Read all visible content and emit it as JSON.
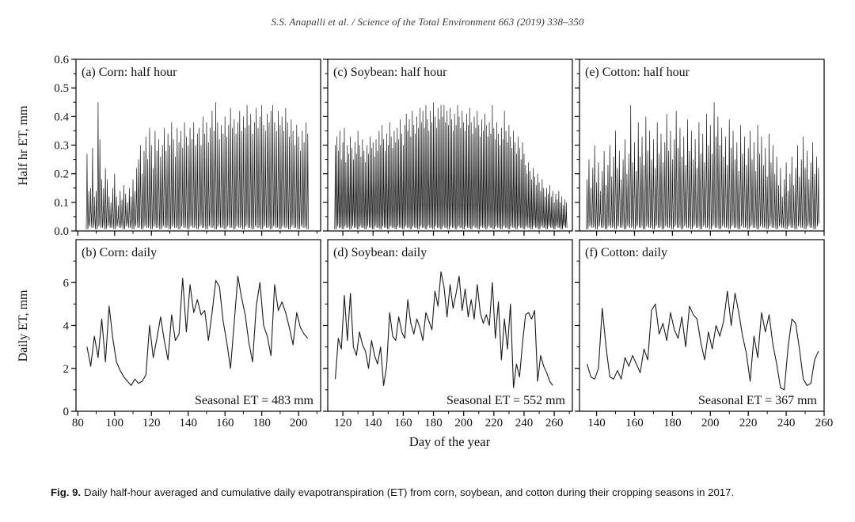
{
  "header": {
    "citation": "S.S. Anapalli et al. / Science of the Total Environment 663 (2019) 338–350"
  },
  "caption": {
    "label": "Fig. 9.",
    "text": "Daily half-hour averaged and cumulative daily evapotranspiration (ET) from corn, soybean, and cotton during their cropping seasons in 2017."
  },
  "axes": {
    "x_title": "Day of the year",
    "y_title_top": "Half hr ET, mm",
    "y_title_bottom": "Daily ET, mm"
  },
  "colors": {
    "line": "#1a1a1a",
    "frame": "#000000"
  },
  "chart_data": [
    {
      "panel": "a",
      "type": "line",
      "title": "(a) Corn: half hour",
      "crop": "Corn",
      "ylabel": "Half hr ET, mm",
      "ylim": [
        0,
        0.6
      ],
      "ytick_values": [
        0,
        0.1,
        0.2,
        0.3,
        0.4,
        0.5,
        0.6
      ],
      "ytick_labels": [
        "0.0",
        "0.1",
        "0.2",
        "0.3",
        "0.4",
        "0.5",
        "0.6"
      ],
      "xlim": [
        79,
        212
      ],
      "xticks": [
        80,
        100,
        120,
        140,
        160,
        180,
        200
      ],
      "series": {
        "name": "half-hour ET daily peaks",
        "x_start": 85,
        "x_step": 1,
        "peaks": [
          0.27,
          0.14,
          0.15,
          0.29,
          0.12,
          0.14,
          0.45,
          0.32,
          0.18,
          0.15,
          0.22,
          0.18,
          0.12,
          0.1,
          0.15,
          0.2,
          0.12,
          0.09,
          0.14,
          0.11,
          0.16,
          0.13,
          0.1,
          0.15,
          0.12,
          0.18,
          0.14,
          0.22,
          0.25,
          0.3,
          0.2,
          0.28,
          0.33,
          0.25,
          0.36,
          0.3,
          0.22,
          0.35,
          0.28,
          0.32,
          0.26,
          0.3,
          0.36,
          0.28,
          0.34,
          0.3,
          0.38,
          0.32,
          0.26,
          0.36,
          0.31,
          0.35,
          0.29,
          0.38,
          0.33,
          0.3,
          0.36,
          0.32,
          0.38,
          0.3,
          0.34,
          0.36,
          0.3,
          0.4,
          0.34,
          0.38,
          0.31,
          0.36,
          0.42,
          0.35,
          0.45,
          0.38,
          0.32,
          0.37,
          0.34,
          0.4,
          0.33,
          0.37,
          0.43,
          0.36,
          0.39,
          0.34,
          0.38,
          0.42,
          0.35,
          0.4,
          0.36,
          0.44,
          0.37,
          0.41,
          0.34,
          0.38,
          0.43,
          0.36,
          0.4,
          0.44,
          0.37,
          0.35,
          0.41,
          0.38,
          0.42,
          0.44,
          0.38,
          0.35,
          0.42,
          0.37,
          0.4,
          0.35,
          0.43,
          0.38,
          0.33,
          0.39,
          0.35,
          0.3,
          0.37,
          0.33,
          0.28,
          0.35,
          0.31,
          0.38,
          0.34
        ]
      }
    },
    {
      "panel": "b",
      "type": "line",
      "title": "(b) Corn: daily",
      "crop": "Corn",
      "ylabel": "Daily ET, mm",
      "ylim": [
        0,
        8
      ],
      "ytick_values": [
        0,
        2,
        4,
        6
      ],
      "ytick_labels": [
        "0",
        "2",
        "4",
        "6"
      ],
      "yminor": [
        1,
        3,
        5,
        7
      ],
      "xlim": [
        79,
        212
      ],
      "xticks": [
        80,
        100,
        120,
        140,
        160,
        180,
        200
      ],
      "annotation": "Seasonal ET = 483 mm",
      "series": {
        "name": "daily ET",
        "x_start": 85,
        "x_step": 2,
        "values": [
          3.0,
          2.1,
          3.5,
          2.5,
          4.3,
          2.3,
          4.9,
          3.4,
          2.3,
          1.9,
          1.6,
          1.4,
          1.2,
          1.5,
          1.3,
          1.4,
          1.7,
          4.0,
          2.5,
          3.4,
          4.4,
          3.3,
          2.4,
          4.5,
          3.3,
          3.6,
          6.2,
          3.7,
          5.9,
          4.6,
          5.2,
          4.5,
          4.7,
          3.3,
          4.6,
          6.1,
          5.8,
          4.2,
          3.2,
          2.0,
          4.1,
          6.3,
          5.3,
          4.5,
          3.2,
          2.3,
          4.9,
          6.0,
          4.0,
          3.5,
          2.6,
          5.9,
          4.7,
          5.1,
          4.6,
          3.9,
          3.1,
          4.6,
          3.9,
          3.6,
          3.4
        ]
      }
    },
    {
      "panel": "c",
      "type": "line",
      "title": "(c) Soybean: half hour",
      "crop": "Soybean",
      "ylabel": "Half hr ET, mm",
      "ylim": [
        0,
        0.6
      ],
      "ytick_values": [
        0,
        0.1,
        0.2,
        0.3,
        0.4,
        0.5,
        0.6
      ],
      "ytick_labels": [
        "0.0",
        "0.1",
        "0.2",
        "0.3",
        "0.4",
        "0.5",
        "0.6"
      ],
      "xlim": [
        110,
        272
      ],
      "xticks": [
        120,
        140,
        160,
        180,
        200,
        220,
        240,
        260
      ],
      "series": {
        "name": "half-hour ET daily peaks",
        "x_start": 115,
        "x_step": 1,
        "peaks": [
          0.3,
          0.33,
          0.28,
          0.35,
          0.25,
          0.31,
          0.36,
          0.24,
          0.3,
          0.27,
          0.33,
          0.29,
          0.25,
          0.31,
          0.27,
          0.35,
          0.3,
          0.26,
          0.32,
          0.28,
          0.24,
          0.3,
          0.27,
          0.33,
          0.29,
          0.31,
          0.26,
          0.32,
          0.28,
          0.35,
          0.3,
          0.37,
          0.32,
          0.28,
          0.34,
          0.3,
          0.38,
          0.33,
          0.29,
          0.35,
          0.31,
          0.36,
          0.32,
          0.39,
          0.34,
          0.3,
          0.37,
          0.41,
          0.35,
          0.39,
          0.33,
          0.42,
          0.37,
          0.34,
          0.4,
          0.36,
          0.43,
          0.38,
          0.42,
          0.36,
          0.44,
          0.39,
          0.35,
          0.42,
          0.38,
          0.45,
          0.4,
          0.36,
          0.43,
          0.39,
          0.44,
          0.4,
          0.44,
          0.38,
          0.42,
          0.37,
          0.43,
          0.39,
          0.35,
          0.41,
          0.37,
          0.44,
          0.4,
          0.36,
          0.42,
          0.38,
          0.35,
          0.41,
          0.37,
          0.43,
          0.38,
          0.34,
          0.4,
          0.36,
          0.42,
          0.37,
          0.33,
          0.39,
          0.35,
          0.41,
          0.37,
          0.33,
          0.38,
          0.34,
          0.44,
          0.36,
          0.32,
          0.38,
          0.34,
          0.3,
          0.36,
          0.32,
          0.42,
          0.35,
          0.31,
          0.37,
          0.33,
          0.29,
          0.35,
          0.31,
          0.27,
          0.33,
          0.29,
          0.25,
          0.31,
          0.27,
          0.23,
          0.2,
          0.24,
          0.21,
          0.18,
          0.22,
          0.19,
          0.16,
          0.2,
          0.17,
          0.14,
          0.18,
          0.15,
          0.12,
          0.15,
          0.13,
          0.16,
          0.12,
          0.14,
          0.1,
          0.13,
          0.11,
          0.14,
          0.1,
          0.12,
          0.09,
          0.11,
          0.1
        ]
      }
    },
    {
      "panel": "d",
      "type": "line",
      "title": "(d) Soybean: daily",
      "crop": "Soybean",
      "ylabel": "Daily ET, mm",
      "ylim": [
        0,
        8
      ],
      "ytick_values": [
        0,
        2,
        4,
        6
      ],
      "ytick_labels": [
        "0",
        "2",
        "4",
        "6"
      ],
      "yminor": [
        1,
        3,
        5,
        7
      ],
      "xlim": [
        110,
        272
      ],
      "xticks": [
        120,
        140,
        160,
        180,
        200,
        220,
        240,
        260
      ],
      "annotation": "Seasonal ET = 552 mm",
      "series": {
        "name": "daily ET",
        "x_start": 115,
        "x_step": 2,
        "values": [
          1.5,
          3.4,
          2.9,
          5.4,
          3.3,
          5.5,
          3.0,
          2.6,
          3.7,
          3.1,
          2.8,
          2.0,
          3.3,
          2.6,
          2.2,
          3.0,
          1.2,
          2.1,
          4.6,
          3.5,
          3.3,
          4.4,
          3.7,
          3.4,
          5.2,
          4.1,
          3.6,
          4.3,
          3.9,
          3.3,
          4.6,
          4.2,
          3.8,
          5.6,
          4.9,
          6.5,
          5.8,
          4.4,
          5.9,
          4.8,
          5.5,
          6.3,
          4.7,
          5.7,
          4.4,
          5.2,
          4.3,
          5.9,
          4.6,
          4.1,
          4.5,
          4.0,
          6.0,
          3.4,
          5.1,
          2.4,
          4.3,
          2.9,
          5.0,
          1.1,
          2.2,
          1.6,
          3.2,
          4.5,
          4.6,
          4.3,
          4.7,
          1.4,
          2.6,
          2.1,
          1.8,
          1.4,
          1.2
        ]
      }
    },
    {
      "panel": "e",
      "type": "line",
      "title": "(e) Cotton: half hour",
      "crop": "Cotton",
      "ylabel": "Half hr ET, mm",
      "ylim": [
        0,
        0.6
      ],
      "ytick_values": [
        0,
        0.1,
        0.2,
        0.3,
        0.4,
        0.5,
        0.6
      ],
      "ytick_labels": [
        "0.0",
        "0.1",
        "0.2",
        "0.3",
        "0.4",
        "0.5",
        "0.6"
      ],
      "xlim": [
        131,
        260
      ],
      "xticks": [
        140,
        160,
        180,
        200,
        220,
        240,
        260
      ],
      "series": {
        "name": "half-hour ET daily peaks",
        "x_start": 135,
        "x_step": 1,
        "peaks": [
          0.18,
          0.25,
          0.15,
          0.22,
          0.3,
          0.17,
          0.24,
          0.14,
          0.21,
          0.28,
          0.16,
          0.23,
          0.3,
          0.19,
          0.26,
          0.35,
          0.22,
          0.28,
          0.18,
          0.25,
          0.32,
          0.2,
          0.27,
          0.44,
          0.24,
          0.31,
          0.21,
          0.38,
          0.26,
          0.33,
          0.23,
          0.4,
          0.28,
          0.35,
          0.25,
          0.32,
          0.22,
          0.38,
          0.27,
          0.34,
          0.24,
          0.31,
          0.41,
          0.28,
          0.35,
          0.25,
          0.32,
          0.42,
          0.29,
          0.36,
          0.26,
          0.33,
          0.23,
          0.39,
          0.28,
          0.35,
          0.25,
          0.32,
          0.22,
          0.38,
          0.27,
          0.34,
          0.24,
          0.41,
          0.3,
          0.37,
          0.27,
          0.45,
          0.33,
          0.4,
          0.3,
          0.36,
          0.26,
          0.33,
          0.23,
          0.39,
          0.29,
          0.35,
          0.25,
          0.31,
          0.21,
          0.37,
          0.27,
          0.33,
          0.23,
          0.29,
          0.35,
          0.25,
          0.31,
          0.21,
          0.37,
          0.27,
          0.33,
          0.23,
          0.29,
          0.19,
          0.34,
          0.24,
          0.3,
          0.2,
          0.26,
          0.16,
          0.22,
          0.12,
          0.18,
          0.24,
          0.14,
          0.2,
          0.26,
          0.16,
          0.22,
          0.3,
          0.19,
          0.25,
          0.33,
          0.22,
          0.28,
          0.18,
          0.24,
          0.31,
          0.2,
          0.26,
          0.22
        ]
      }
    },
    {
      "panel": "f",
      "type": "line",
      "title": "(f) Cotton: daily",
      "crop": "Cotton",
      "ylabel": "Daily ET, mm",
      "ylim": [
        0,
        8
      ],
      "ytick_values": [
        0,
        2,
        4,
        6
      ],
      "ytick_labels": [
        "0",
        "2",
        "4",
        "6"
      ],
      "yminor": [
        1,
        3,
        5,
        7
      ],
      "xlim": [
        131,
        260
      ],
      "xticks": [
        140,
        160,
        180,
        200,
        220,
        240,
        260
      ],
      "annotation": "Seasonal ET = 367 mm",
      "series": {
        "name": "daily ET",
        "x_start": 135,
        "x_step": 2,
        "values": [
          2.2,
          1.6,
          1.5,
          2.0,
          4.8,
          3.0,
          1.6,
          1.5,
          1.9,
          1.5,
          2.5,
          2.1,
          2.6,
          2.2,
          1.8,
          2.9,
          2.4,
          4.7,
          5.0,
          3.6,
          4.1,
          3.3,
          4.6,
          3.8,
          3.4,
          4.4,
          3.0,
          4.9,
          4.5,
          4.3,
          3.2,
          2.4,
          3.7,
          2.9,
          4.0,
          3.5,
          4.2,
          5.6,
          4.0,
          5.5,
          4.6,
          3.5,
          2.7,
          1.4,
          3.5,
          2.5,
          4.6,
          3.7,
          4.5,
          3.1,
          2.2,
          1.1,
          1.0,
          3.0,
          4.3,
          4.1,
          2.9,
          1.5,
          1.2,
          1.3,
          2.4,
          2.8
        ]
      }
    }
  ]
}
